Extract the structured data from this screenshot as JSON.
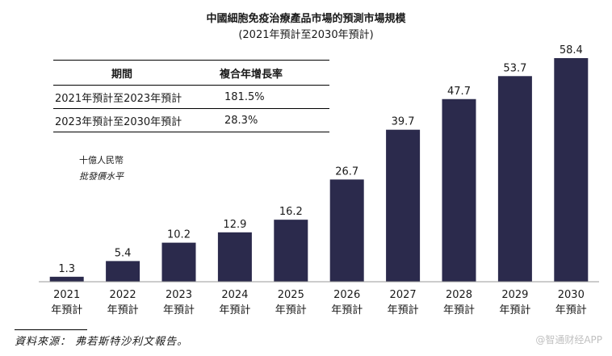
{
  "chart_data": {
    "type": "bar",
    "title": "中國細胞免疫治療產品市場的預測市場規模",
    "subtitle": "(2021年預計至2030年預計)",
    "categories": [
      "2021",
      "2022",
      "2023",
      "2024",
      "2025",
      "2026",
      "2027",
      "2028",
      "2029",
      "2030"
    ],
    "category_suffix": "年預計",
    "values": [
      1.3,
      5.4,
      10.2,
      12.9,
      16.2,
      26.7,
      39.7,
      47.7,
      53.7,
      58.4
    ],
    "value_labels": [
      "1.3",
      "5.4",
      "10.2",
      "12.9",
      "16.2",
      "26.7",
      "39.7",
      "47.7",
      "53.7",
      "58.4"
    ],
    "unit": "十億人民幣",
    "unit_note": "批發價水平",
    "ylim": [
      0,
      58.4
    ],
    "bar_color": "#2b2a4c"
  },
  "cagr_table": {
    "headers": [
      "期間",
      "複合年增長率"
    ],
    "rows": [
      [
        "2021年預計至2023年預計",
        "181.5%"
      ],
      [
        "2023年預計至2030年預計",
        "28.3%"
      ]
    ]
  },
  "source": "資料來源： 弗若斯特沙利文報告。",
  "watermark": "@智通财经APP"
}
